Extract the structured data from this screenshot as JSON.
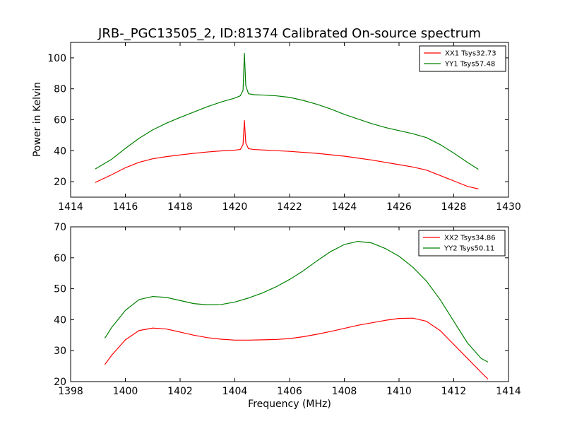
{
  "chart_data": [
    {
      "type": "line",
      "title": "JRB-_PGC13505_2, ID:81374 Calibrated On-source spectrum",
      "xlabel": "",
      "ylabel": "Power in Kelvin",
      "xlim": [
        1414,
        1430
      ],
      "ylim": [
        10,
        110
      ],
      "xticks": [
        1414,
        1416,
        1418,
        1420,
        1422,
        1424,
        1426,
        1428,
        1430
      ],
      "yticks": [
        20,
        40,
        60,
        80,
        100
      ],
      "grid": false,
      "legend_position": "top-right",
      "series": [
        {
          "name": "XX1 Tsys32.73",
          "color": "#ff0000",
          "x": [
            1414.9,
            1415.5,
            1416.0,
            1416.5,
            1417.0,
            1417.5,
            1418.0,
            1418.5,
            1419.0,
            1419.5,
            1420.0,
            1420.2,
            1420.3,
            1420.35,
            1420.4,
            1420.5,
            1420.7,
            1421.0,
            1422.0,
            1423.0,
            1424.0,
            1425.0,
            1426.0,
            1426.5,
            1427.0,
            1427.5,
            1428.0,
            1428.5,
            1428.9
          ],
          "y": [
            19.5,
            24.5,
            29.0,
            32.5,
            34.8,
            36.2,
            37.3,
            38.3,
            39.2,
            39.9,
            40.4,
            40.8,
            44.0,
            59.5,
            45.0,
            41.3,
            40.8,
            40.5,
            39.6,
            38.3,
            36.5,
            34.0,
            31.0,
            29.5,
            27.5,
            24.0,
            20.5,
            17.0,
            15.3
          ]
        },
        {
          "name": "YY1 Tsys57.48",
          "color": "#008000",
          "x": [
            1414.9,
            1415.5,
            1416.0,
            1416.5,
            1417.0,
            1417.5,
            1418.0,
            1418.5,
            1419.0,
            1419.5,
            1420.0,
            1420.2,
            1420.3,
            1420.35,
            1420.4,
            1420.5,
            1420.7,
            1421.0,
            1421.5,
            1422.0,
            1422.5,
            1423.0,
            1423.5,
            1424.0,
            1424.5,
            1425.0,
            1425.5,
            1426.0,
            1426.5,
            1427.0,
            1427.5,
            1428.0,
            1428.5,
            1428.9
          ],
          "y": [
            28.2,
            34.5,
            41.5,
            48.0,
            53.5,
            57.8,
            61.5,
            65.0,
            68.5,
            71.5,
            74.0,
            75.5,
            79.0,
            103.0,
            82.0,
            76.8,
            76.2,
            76.0,
            75.5,
            74.5,
            72.5,
            70.0,
            67.0,
            63.5,
            60.5,
            57.5,
            55.0,
            53.0,
            51.0,
            48.5,
            44.0,
            38.5,
            32.5,
            28.0
          ]
        }
      ]
    },
    {
      "type": "line",
      "title": "",
      "xlabel": "Frequency (MHz)",
      "ylabel": "",
      "xlim": [
        1398,
        1414
      ],
      "ylim": [
        20,
        70
      ],
      "xticks": [
        1398,
        1400,
        1402,
        1404,
        1406,
        1408,
        1410,
        1412,
        1414
      ],
      "yticks": [
        20,
        30,
        40,
        50,
        60,
        70
      ],
      "grid": false,
      "legend_position": "top-right",
      "series": [
        {
          "name": "XX2 Tsys34.86",
          "color": "#ff0000",
          "x": [
            1399.25,
            1399.5,
            1400.0,
            1400.5,
            1401.0,
            1401.5,
            1402.0,
            1402.5,
            1403.0,
            1403.5,
            1404.0,
            1404.5,
            1405.0,
            1405.5,
            1406.0,
            1406.5,
            1407.0,
            1407.5,
            1408.0,
            1408.5,
            1409.0,
            1409.5,
            1410.0,
            1410.5,
            1411.0,
            1411.5,
            1412.0,
            1412.5,
            1413.0,
            1413.25
          ],
          "y": [
            25.5,
            28.5,
            33.5,
            36.5,
            37.3,
            37.0,
            36.0,
            35.0,
            34.2,
            33.7,
            33.4,
            33.4,
            33.5,
            33.6,
            33.9,
            34.5,
            35.3,
            36.2,
            37.2,
            38.2,
            39.0,
            39.8,
            40.4,
            40.5,
            39.5,
            36.5,
            32.0,
            27.5,
            23.0,
            20.8
          ]
        },
        {
          "name": "YY2 Tsys50.11",
          "color": "#008000",
          "x": [
            1399.25,
            1399.5,
            1400.0,
            1400.5,
            1401.0,
            1401.5,
            1402.0,
            1402.5,
            1403.0,
            1403.5,
            1404.0,
            1404.5,
            1405.0,
            1405.5,
            1406.0,
            1406.5,
            1407.0,
            1407.5,
            1408.0,
            1408.5,
            1409.0,
            1409.5,
            1410.0,
            1410.5,
            1411.0,
            1411.5,
            1412.0,
            1412.5,
            1413.0,
            1413.25
          ],
          "y": [
            34.0,
            37.5,
            43.0,
            46.5,
            47.5,
            47.2,
            46.2,
            45.2,
            44.8,
            44.9,
            45.7,
            47.0,
            48.6,
            50.6,
            53.0,
            55.8,
            59.0,
            62.0,
            64.3,
            65.3,
            64.8,
            63.0,
            60.5,
            57.0,
            52.5,
            46.5,
            39.5,
            32.5,
            27.5,
            26.3
          ]
        }
      ]
    }
  ]
}
